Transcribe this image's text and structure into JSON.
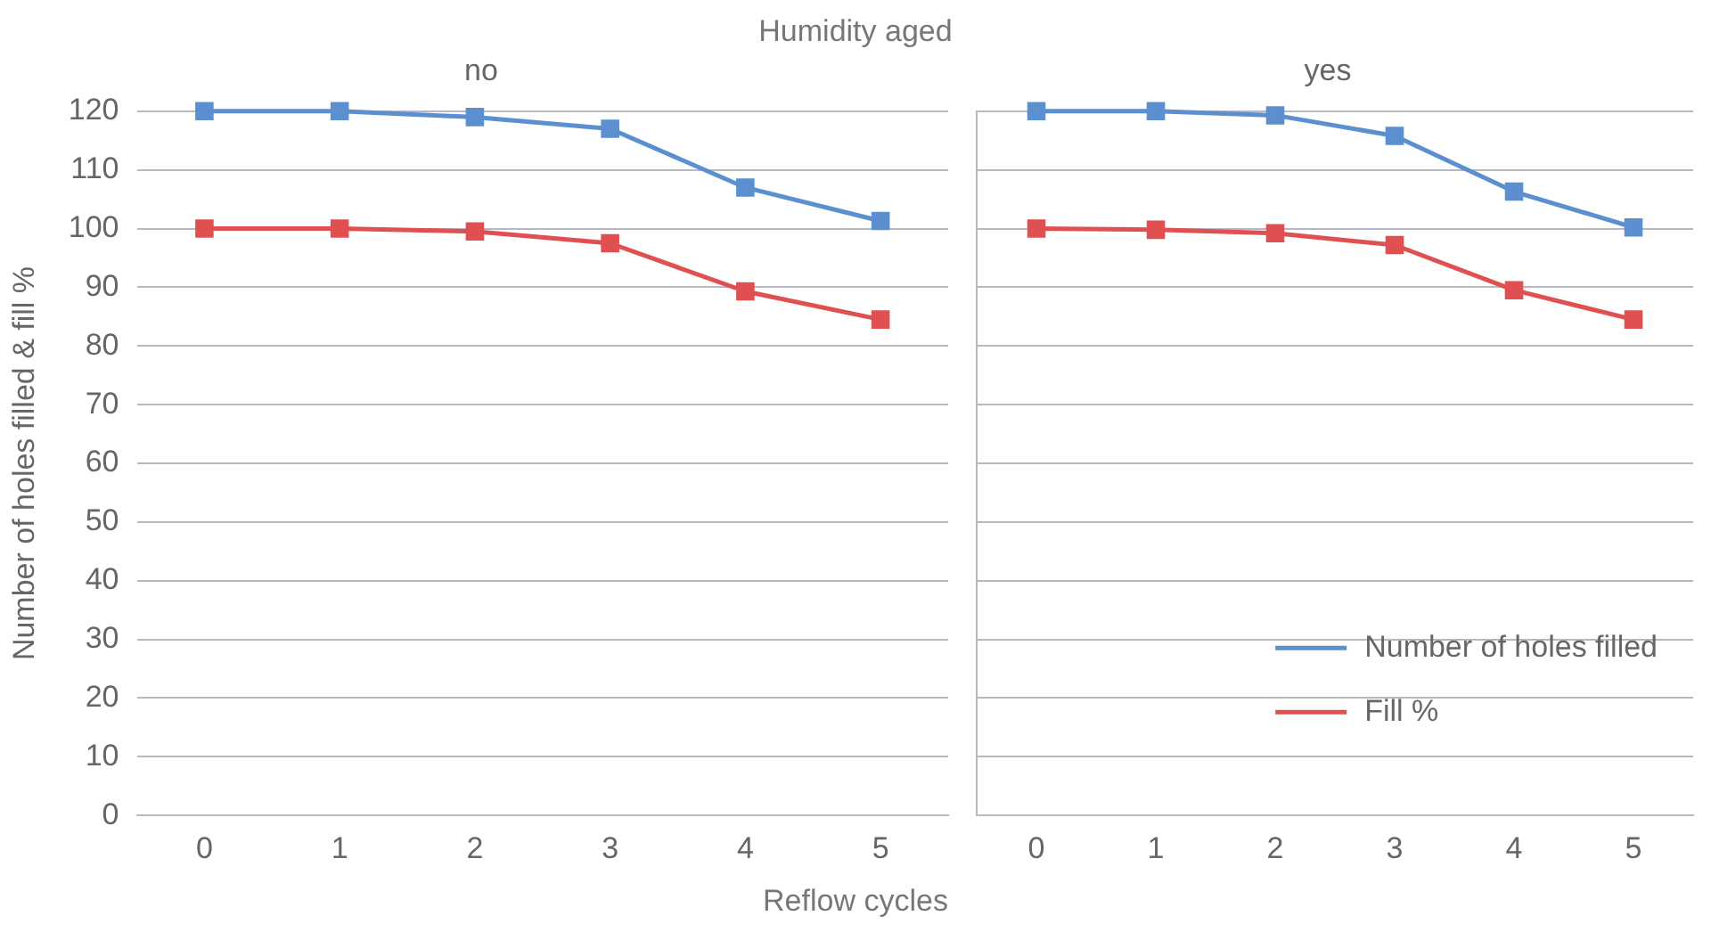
{
  "chart_data": [
    {
      "type": "line",
      "title": "Humidity aged",
      "subtitle": "no",
      "xlabel": "Reflow cycles",
      "ylabel": "Number of holes filled & fill %",
      "categories": [
        "0",
        "1",
        "2",
        "3",
        "4",
        "5"
      ],
      "series": [
        {
          "color": "#5b8fd0",
          "values": [
            120,
            120,
            119,
            117,
            107,
            101.3
          ]
        },
        {
          "color": "#e05050",
          "values": [
            100,
            100,
            99.5,
            97.5,
            89.3,
            84.5
          ]
        }
      ],
      "ylim": [
        0,
        120
      ],
      "yticks": [
        0,
        10,
        20,
        30,
        40,
        50,
        60,
        70,
        80,
        90,
        100,
        110,
        120
      ],
      "grid": "y",
      "marker": "square",
      "line_style": "solid"
    },
    {
      "type": "line",
      "subtitle": "yes",
      "categories": [
        "0",
        "1",
        "2",
        "3",
        "4",
        "5"
      ],
      "series": [
        {
          "name": "Number of holes filled",
          "color": "#5b8fd0",
          "values": [
            120,
            120,
            119.3,
            115.8,
            106.3,
            100.2
          ]
        },
        {
          "name": "Fill %",
          "color": "#e05050",
          "values": [
            100,
            99.8,
            99.2,
            97.2,
            89.5,
            84.5
          ]
        }
      ],
      "ylim": [
        0,
        120
      ],
      "yticks": [
        0,
        10,
        20,
        30,
        40,
        50,
        60,
        70,
        80,
        90,
        100,
        110,
        120
      ],
      "grid": "y",
      "marker": "square",
      "line_style": "solid",
      "legend": "bottom right",
      "tick_labels": "x"
    }
  ]
}
